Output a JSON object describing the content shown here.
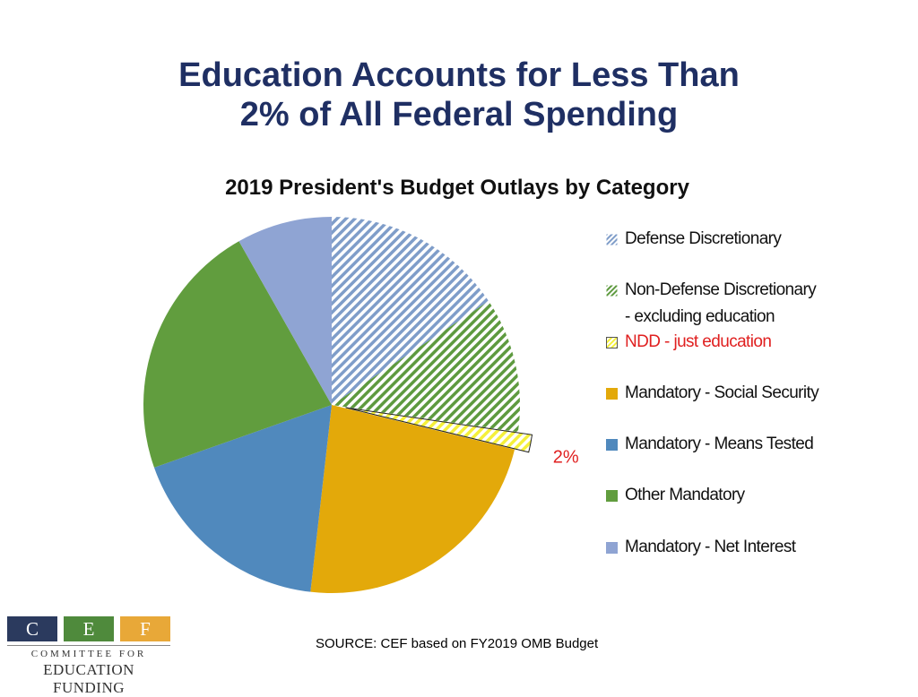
{
  "slide": {
    "title_line1": "Education Accounts for Less Than",
    "title_line2": "2% of All Federal Spending",
    "source": "SOURCE: CEF based on FY2019 OMB Budget"
  },
  "logo": {
    "letters": [
      "C",
      "E",
      "F"
    ],
    "line1": "COMMITTEE FOR",
    "line2": "EDUCATION FUNDING",
    "colors": [
      "#2b3a5e",
      "#4f8a3c",
      "#e8a838"
    ]
  },
  "chart_data": {
    "type": "pie",
    "title": "2019 President's Budget Outlays by Category",
    "start_angle_deg": 0,
    "direction": "clockwise",
    "series": [
      {
        "name": "Defense Discretionary",
        "legend_lines": [
          "Defense Discretionary"
        ],
        "value": 15.7,
        "color": "#7f9dc9",
        "pattern": "hatch",
        "label_color": "#111111"
      },
      {
        "name": "Non-Defense Discretionary - excluding education",
        "legend_lines": [
          "Non-Defense Discretionary",
          "- excluding education"
        ],
        "value": 11.6,
        "color": "#5e9a3f",
        "pattern": "hatch",
        "label_color": "#111111"
      },
      {
        "name": "NDD - just education",
        "legend_lines": [
          "NDD - just education"
        ],
        "value": 1.5,
        "color": "#f5f03a",
        "pattern": "hatch",
        "label_color": "#e02020",
        "exploded": true,
        "data_label": "2%"
      },
      {
        "name": "Mandatory - Social Security",
        "legend_lines": [
          "Mandatory - Social Security"
        ],
        "value": 23.0,
        "color": "#e3a90a",
        "pattern": "solid",
        "label_color": "#111111"
      },
      {
        "name": "Mandatory - Means Tested",
        "legend_lines": [
          "Mandatory - Means Tested"
        ],
        "value": 17.8,
        "color": "#5089bd",
        "pattern": "solid",
        "label_color": "#111111"
      },
      {
        "name": "Other Mandatory",
        "legend_lines": [
          "Other Mandatory"
        ],
        "value": 22.2,
        "color": "#619d3e",
        "pattern": "solid",
        "label_color": "#111111"
      },
      {
        "name": "Mandatory - Net Interest",
        "legend_lines": [
          "Mandatory - Net Interest"
        ],
        "value": 8.2,
        "color": "#8fa4d3",
        "pattern": "solid",
        "label_color": "#111111"
      }
    ],
    "legend_position": "right"
  }
}
